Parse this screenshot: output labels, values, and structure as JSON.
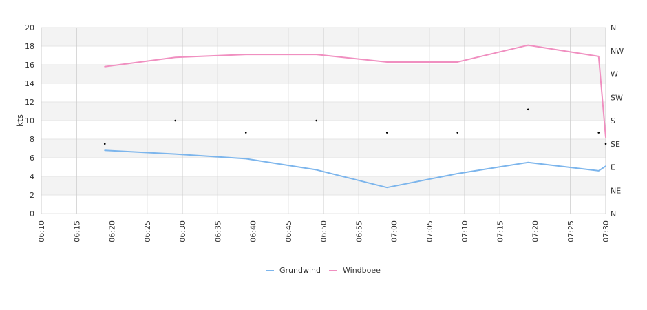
{
  "chart_data": {
    "type": "line",
    "title": "",
    "xlabel": "",
    "ylabel": "kts",
    "ylim": [
      0,
      20
    ],
    "yticks": [
      "0",
      "2",
      "4",
      "6",
      "8",
      "10",
      "12",
      "14",
      "16",
      "18",
      "20"
    ],
    "x_tick_labels": [
      "06:10",
      "06:15",
      "06:20",
      "06:25",
      "06:30",
      "06:35",
      "06:40",
      "06:45",
      "06:50",
      "06:55",
      "07:00",
      "07:05",
      "07:10",
      "07:15",
      "07:20",
      "07:25",
      "07:30"
    ],
    "x_range": [
      "06:10",
      "07:30"
    ],
    "y2_tick_labels": [
      "N",
      "NE",
      "E",
      "SE",
      "S",
      "SW",
      "W",
      "NW",
      "N"
    ],
    "x": [
      "06:19",
      "06:29",
      "06:39",
      "06:49",
      "06:59",
      "07:09",
      "07:19",
      "07:29",
      "07:30"
    ],
    "series": [
      {
        "name": "Grundwind",
        "color": "#7cb5ec",
        "values": [
          6.8,
          6.4,
          5.9,
          4.7,
          2.8,
          4.3,
          5.5,
          4.6,
          5.1
        ]
      },
      {
        "name": "Windboee",
        "color": "#f08fc0",
        "values": [
          15.8,
          16.8,
          17.1,
          17.1,
          16.3,
          16.3,
          18.1,
          16.9,
          8.2
        ]
      }
    ],
    "direction_points": {
      "x": [
        "06:19",
        "06:29",
        "06:39",
        "06:49",
        "06:59",
        "07:09",
        "07:19",
        "07:29",
        "07:30"
      ],
      "y": [
        7.5,
        10.0,
        8.7,
        10.0,
        8.7,
        8.7,
        11.2,
        8.7,
        7.5
      ]
    },
    "grid": true,
    "legend": "bottom-center"
  }
}
